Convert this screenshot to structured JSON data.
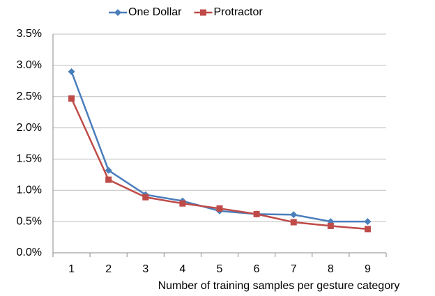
{
  "chart_data": {
    "type": "line",
    "x_label": "Number of training samples per gesture category",
    "categories": [
      "1",
      "2",
      "3",
      "4",
      "5",
      "6",
      "7",
      "8",
      "9"
    ],
    "series": [
      {
        "name": "One Dollar",
        "color": "#4a7ebb",
        "marker": "diamond",
        "values": [
          2.9,
          1.32,
          0.93,
          0.83,
          0.67,
          0.62,
          0.61,
          0.5,
          0.5
        ]
      },
      {
        "name": "Protractor",
        "color": "#be4b48",
        "marker": "square",
        "values": [
          2.47,
          1.17,
          0.89,
          0.79,
          0.71,
          0.62,
          0.49,
          0.43,
          0.38
        ]
      }
    ],
    "ylim": [
      0,
      3.5
    ],
    "yticks": [
      {
        "value": 0,
        "label": "0.0%"
      },
      {
        "value": 0.5,
        "label": "0.5%"
      },
      {
        "value": 1,
        "label": "1.0%"
      },
      {
        "value": 1.5,
        "label": "1.5%"
      },
      {
        "value": 2,
        "label": "2.0%"
      },
      {
        "value": 2.5,
        "label": "2.5%"
      },
      {
        "value": 3,
        "label": "3.0%"
      },
      {
        "value": 3.5,
        "label": "3.5%"
      }
    ],
    "grid": true,
    "legend": "top"
  }
}
